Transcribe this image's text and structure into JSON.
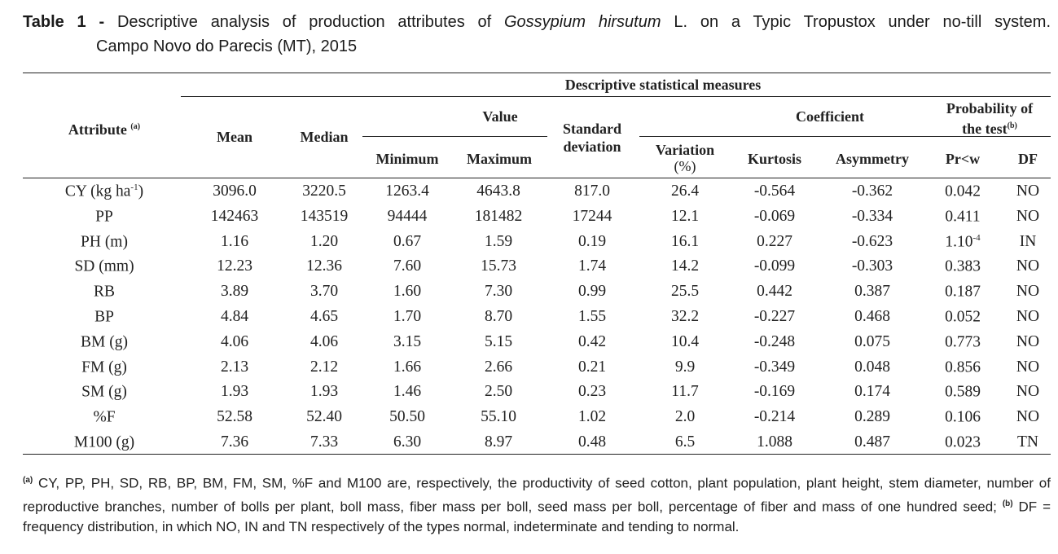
{
  "caption": {
    "label": "Table 1 -",
    "text_before": "Descriptive analysis of production attributes of",
    "species": "Gossypium hirsutum",
    "text_after": "L. on a Typic Tropustox under no-till system.",
    "line2": "Campo Novo do Parecis (MT), 2015"
  },
  "header": {
    "group": "Descriptive statistical measures",
    "attribute": "Attribute",
    "attribute_sup": "(a)",
    "mean": "Mean",
    "median": "Median",
    "value": "Value",
    "minimum": "Minimum",
    "maximum": "Maximum",
    "std_1": "Standard",
    "std_2": "deviation",
    "coefficient": "Coefficient",
    "variation_1": "Variation",
    "variation_2": "(%)",
    "kurtosis": "Kurtosis",
    "asymmetry": "Asymmetry",
    "prob_1": "Probability of",
    "prob_2": "the test",
    "prob_sup": "(b)",
    "prw": "Pr<w",
    "df": "DF"
  },
  "rows": [
    {
      "attr": "CY (kg ha",
      "attr_sup": "-1",
      "attr_end": ")",
      "mean": "3096.0",
      "median": "3220.5",
      "min": "1263.4",
      "max": "4643.8",
      "sd": "817.0",
      "cv": "26.4",
      "kurt": "-0.564",
      "asym": "-0.362",
      "pr": "0.042",
      "pr_sup": "",
      "df": "NO"
    },
    {
      "attr": "PP",
      "attr_sup": "",
      "attr_end": "",
      "mean": "142463",
      "median": "143519",
      "min": "94444",
      "max": "181482",
      "sd": "17244",
      "cv": "12.1",
      "kurt": "-0.069",
      "asym": "-0.334",
      "pr": "0.411",
      "pr_sup": "",
      "df": "NO"
    },
    {
      "attr": "PH (m)",
      "attr_sup": "",
      "attr_end": "",
      "mean": "1.16",
      "median": "1.20",
      "min": "0.67",
      "max": "1.59",
      "sd": "0.19",
      "cv": "16.1",
      "kurt": "0.227",
      "asym": "-0.623",
      "pr": "1.10",
      "pr_sup": "-4",
      "df": "IN"
    },
    {
      "attr": "SD (mm)",
      "attr_sup": "",
      "attr_end": "",
      "mean": "12.23",
      "median": "12.36",
      "min": "7.60",
      "max": "15.73",
      "sd": "1.74",
      "cv": "14.2",
      "kurt": "-0.099",
      "asym": "-0.303",
      "pr": "0.383",
      "pr_sup": "",
      "df": "NO"
    },
    {
      "attr": "RB",
      "attr_sup": "",
      "attr_end": "",
      "mean": "3.89",
      "median": "3.70",
      "min": "1.60",
      "max": "7.30",
      "sd": "0.99",
      "cv": "25.5",
      "kurt": "0.442",
      "asym": "0.387",
      "pr": "0.187",
      "pr_sup": "",
      "df": "NO"
    },
    {
      "attr": "BP",
      "attr_sup": "",
      "attr_end": "",
      "mean": "4.84",
      "median": "4.65",
      "min": "1.70",
      "max": "8.70",
      "sd": "1.55",
      "cv": "32.2",
      "kurt": "-0.227",
      "asym": "0.468",
      "pr": "0.052",
      "pr_sup": "",
      "df": "NO"
    },
    {
      "attr": "BM (g)",
      "attr_sup": "",
      "attr_end": "",
      "mean": "4.06",
      "median": "4.06",
      "min": "3.15",
      "max": "5.15",
      "sd": "0.42",
      "cv": "10.4",
      "kurt": "-0.248",
      "asym": "0.075",
      "pr": "0.773",
      "pr_sup": "",
      "df": "NO"
    },
    {
      "attr": "FM (g)",
      "attr_sup": "",
      "attr_end": "",
      "mean": "2.13",
      "median": "2.12",
      "min": "1.66",
      "max": "2.66",
      "sd": "0.21",
      "cv": "9.9",
      "kurt": "-0.349",
      "asym": "0.048",
      "pr": "0.856",
      "pr_sup": "",
      "df": "NO"
    },
    {
      "attr": "SM (g)",
      "attr_sup": "",
      "attr_end": "",
      "mean": "1.93",
      "median": "1.93",
      "min": "1.46",
      "max": "2.50",
      "sd": "0.23",
      "cv": "11.7",
      "kurt": "-0.169",
      "asym": "0.174",
      "pr": "0.589",
      "pr_sup": "",
      "df": "NO"
    },
    {
      "attr": "%F",
      "attr_sup": "",
      "attr_end": "",
      "mean": "52.58",
      "median": "52.40",
      "min": "50.50",
      "max": "55.10",
      "sd": "1.02",
      "cv": "2.0",
      "kurt": "-0.214",
      "asym": "0.289",
      "pr": "0.106",
      "pr_sup": "",
      "df": "NO"
    },
    {
      "attr": "M100 (g)",
      "attr_sup": "",
      "attr_end": "",
      "mean": "7.36",
      "median": "7.33",
      "min": "6.30",
      "max": "8.97",
      "sd": "0.48",
      "cv": "6.5",
      "kurt": "1.088",
      "asym": "0.487",
      "pr": "0.023",
      "pr_sup": "",
      "df": "TN"
    }
  ],
  "footnote": {
    "a_sup": "(a)",
    "a_text": "CY, PP, PH, SD, RB, BP, BM, FM, SM, %F and M100 are, respectively, the productivity of seed cotton, plant population, plant height, stem diameter, number of reproductive branches, number of bolls per plant, boll mass, fiber mass per boll, seed mass per boll, percentage of fiber and mass of one hundred seed;",
    "b_sup": "(b)",
    "b_text": "DF = frequency distribution, in which NO, IN and TN respectively of the types normal, indeterminate and tending to normal."
  }
}
